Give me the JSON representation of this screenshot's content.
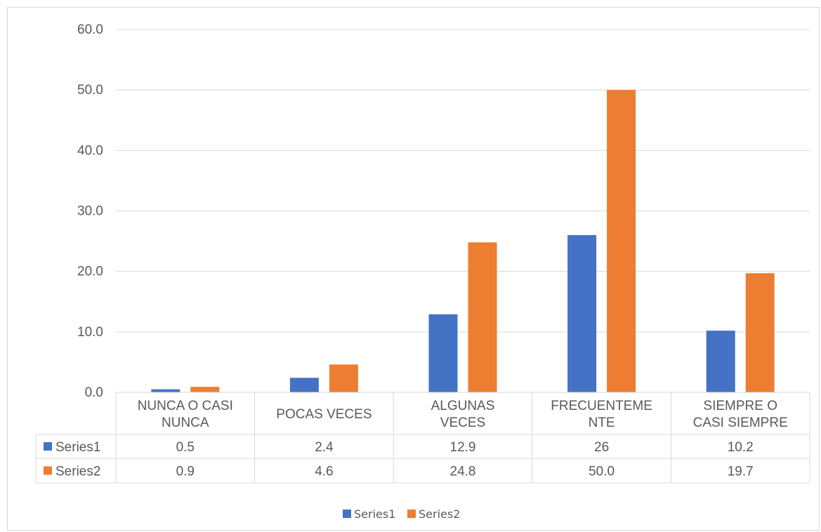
{
  "chart_data": {
    "type": "bar",
    "title": "",
    "xlabel": "",
    "ylabel": "",
    "ylim": [
      0,
      60
    ],
    "y_ticks": [
      "0.0",
      "10.0",
      "20.0",
      "30.0",
      "40.0",
      "50.0",
      "60.0"
    ],
    "grid": true,
    "legend_position": "bottom",
    "categories": [
      [
        "NUNCA O CASI",
        "NUNCA"
      ],
      [
        "POCAS VECES"
      ],
      [
        "ALGUNAS",
        "VECES"
      ],
      [
        "FRECUENTEME",
        "NTE"
      ],
      [
        "SIEMPRE O",
        "CASI SIEMPRE"
      ]
    ],
    "series": [
      {
        "name": "Series1",
        "color": "#4472c4",
        "values": [
          0.5,
          2.4,
          12.9,
          26,
          10.2
        ],
        "table_values": [
          "0.5",
          "2.4",
          "12.9",
          "26",
          "10.2"
        ]
      },
      {
        "name": "Series2",
        "color": "#ed7d31",
        "values": [
          0.9,
          4.6,
          24.8,
          50.0,
          19.7
        ],
        "table_values": [
          "0.9",
          "4.6",
          "24.8",
          "50.0",
          "19.7"
        ]
      }
    ]
  }
}
